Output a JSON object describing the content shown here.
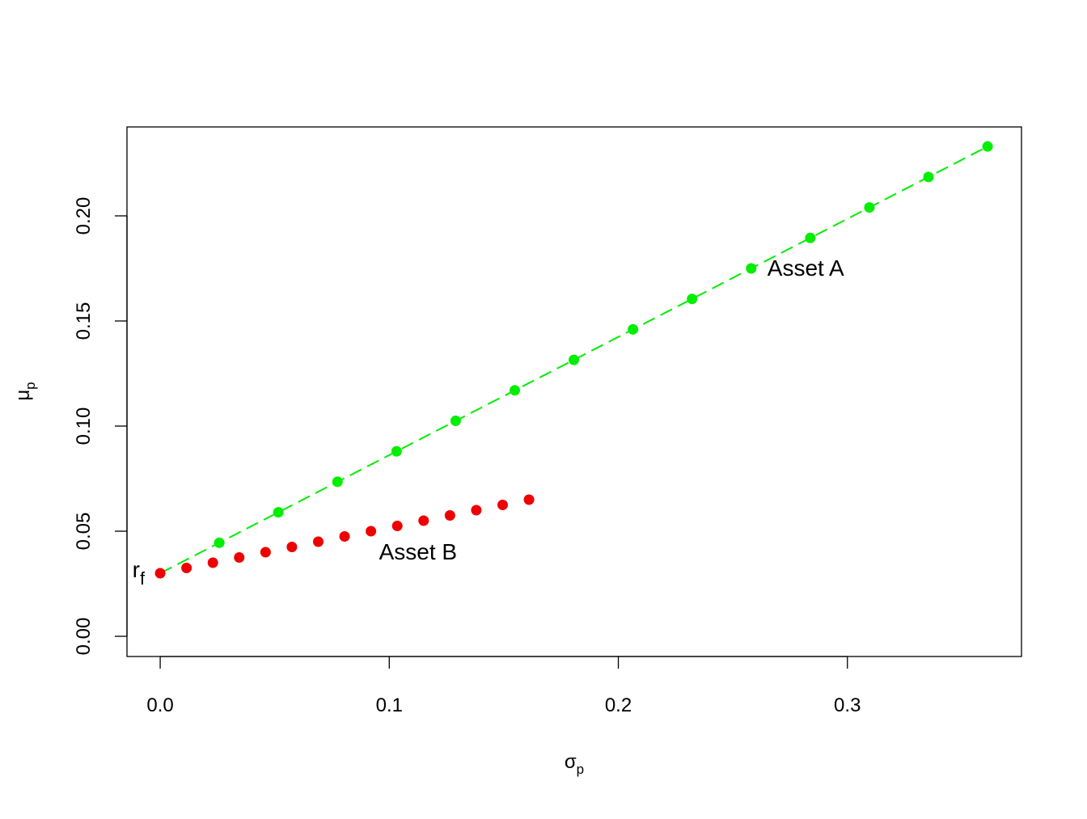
{
  "chart_data": {
    "type": "scatter",
    "title": "",
    "xlabel": "σ",
    "xlabel_sub": "p",
    "ylabel": "μ",
    "ylabel_sub": "p",
    "xlim": [
      -0.0145,
      0.376
    ],
    "ylim": [
      -0.0096,
      0.2423
    ],
    "x_ticks": [
      0.0,
      0.1,
      0.2,
      0.3
    ],
    "x_tick_labels": [
      "0.0",
      "0.1",
      "0.2",
      "0.3"
    ],
    "y_ticks": [
      0.0,
      0.05,
      0.1,
      0.15,
      0.2
    ],
    "y_tick_labels": [
      "0.00",
      "0.05",
      "0.10",
      "0.15",
      "0.20"
    ],
    "grid": false,
    "series": [
      {
        "color": "#00ee00",
        "marker": "filled-circle",
        "x": [
          0.0258,
          0.0516,
          0.0774,
          0.1032,
          0.129,
          0.1548,
          0.1806,
          0.2064,
          0.2322,
          0.258,
          0.2838,
          0.3096,
          0.3354,
          0.3612
        ],
        "y": [
          0.0445,
          0.059,
          0.0735,
          0.088,
          0.1025,
          0.117,
          0.1315,
          0.146,
          0.1605,
          0.175,
          0.1895,
          0.204,
          0.2185,
          0.233
        ]
      },
      {
        "color": "#ee0000",
        "marker": "filled-circle",
        "x": [
          0.0,
          0.0115,
          0.023,
          0.0345,
          0.046,
          0.0575,
          0.069,
          0.0805,
          0.092,
          0.1035,
          0.115,
          0.1265,
          0.138,
          0.1495,
          0.161
        ],
        "y": [
          0.03,
          0.0325,
          0.035,
          0.0375,
          0.04,
          0.0425,
          0.045,
          0.0475,
          0.05,
          0.0525,
          0.055,
          0.0575,
          0.06,
          0.0625,
          0.065
        ]
      }
    ],
    "lines": [
      {
        "color": "#00ee00",
        "style": "dashed",
        "x": [
          0.0,
          0.3612
        ],
        "y": [
          0.03,
          0.233
        ]
      }
    ],
    "annotations": [
      {
        "text": "Asset A",
        "x": 0.258,
        "y": 0.175,
        "pos": "right"
      },
      {
        "text": "Asset B",
        "x": 0.092,
        "y": 0.05,
        "pos": "below-right"
      },
      {
        "text": "r",
        "sub": "f",
        "x": 0.0,
        "y": 0.03,
        "pos": "left"
      }
    ]
  }
}
